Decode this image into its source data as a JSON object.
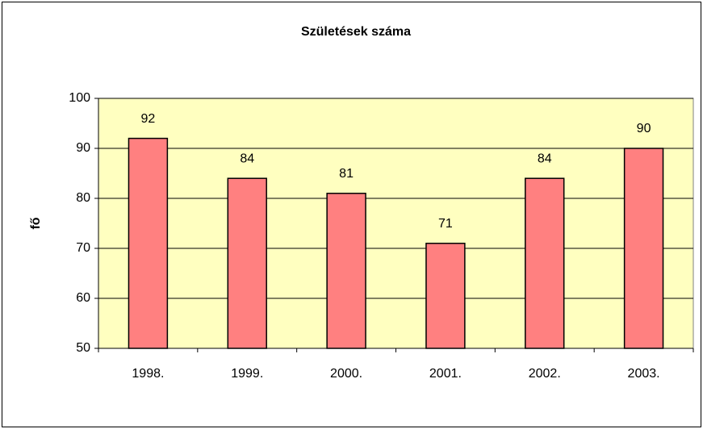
{
  "chart_data": {
    "type": "bar",
    "title": "Születések száma",
    "y_label": "fő",
    "categories": [
      "1998.",
      "1999.",
      "2000.",
      "2001.",
      "2002.",
      "2003."
    ],
    "values": [
      92,
      84,
      81,
      71,
      84,
      90
    ],
    "color": "#ff8080",
    "plot_background": "#ffffc0",
    "ylim": [
      50,
      100
    ],
    "yticks": [
      50,
      60,
      70,
      80,
      90,
      100
    ],
    "grid": true,
    "data_labels": true
  }
}
